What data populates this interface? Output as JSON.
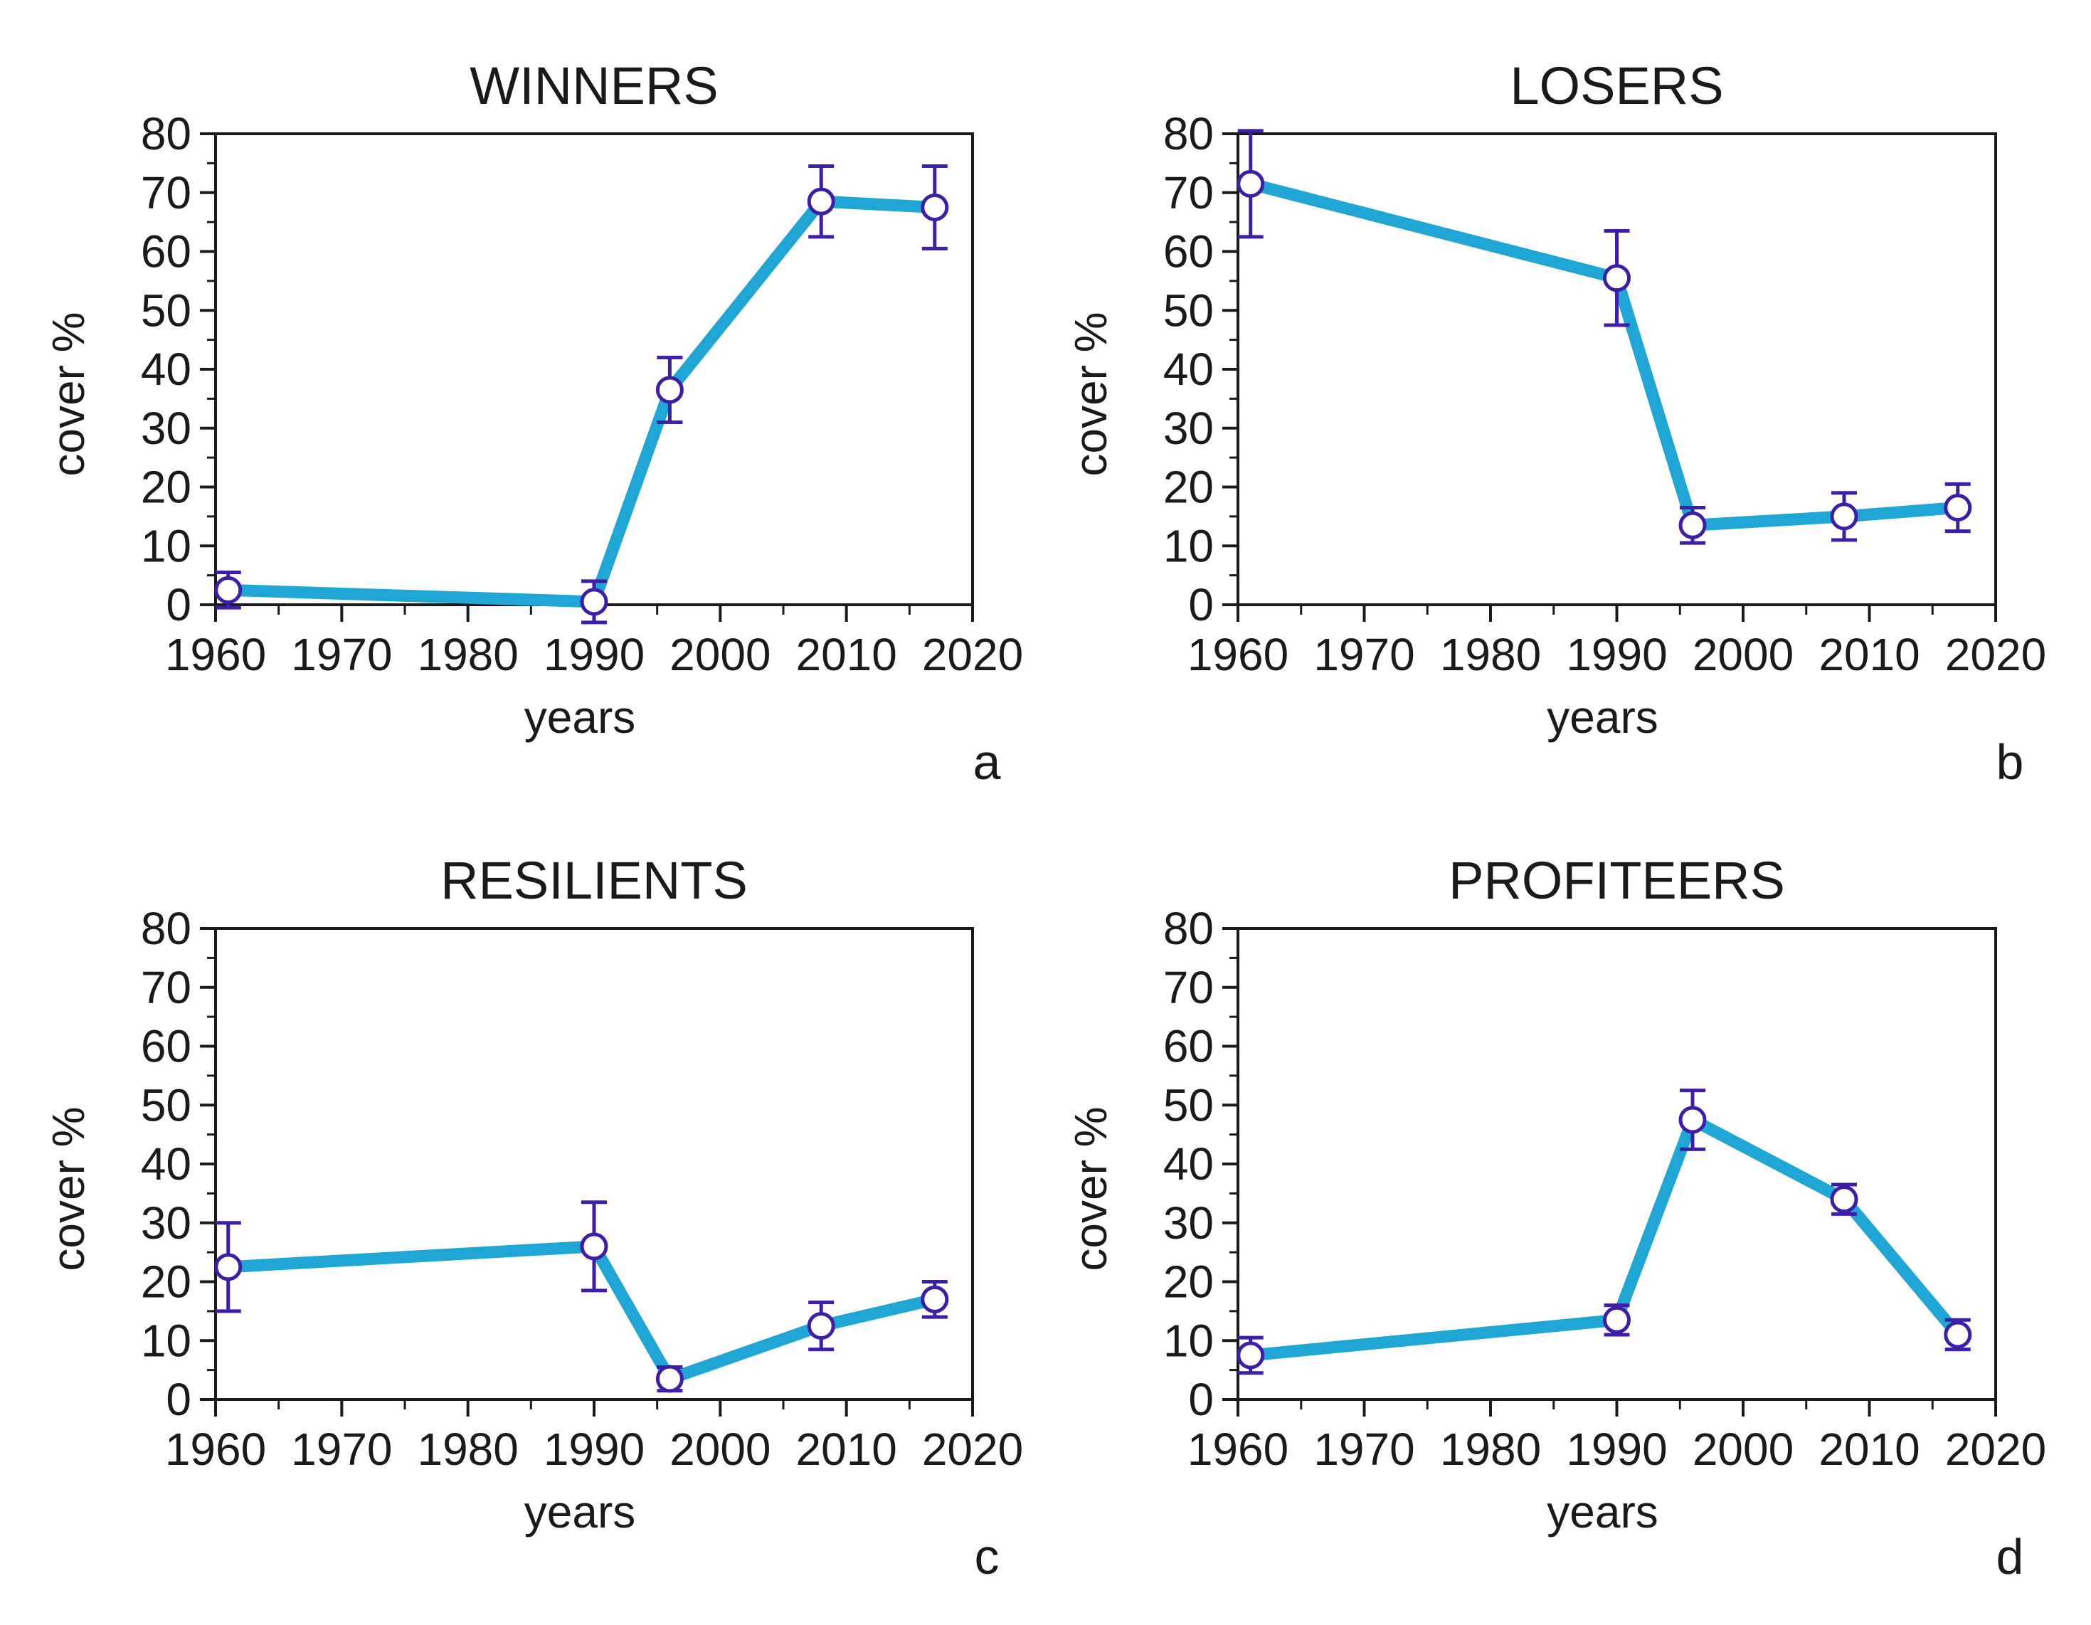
{
  "colors": {
    "line": "#1fa6d4",
    "marker": "#3d1ea8",
    "axis": "#1a1a1a"
  },
  "chart_data": [
    {
      "type": "line",
      "panel": "a",
      "title": "WINNERS",
      "xlabel": "years",
      "ylabel": "cover %",
      "xlim": [
        1960,
        2020
      ],
      "ylim": [
        0,
        80
      ],
      "xticks": [
        1960,
        1970,
        1980,
        1990,
        2000,
        2010,
        2020
      ],
      "yticks": [
        0,
        10,
        20,
        30,
        40,
        50,
        60,
        70,
        80
      ],
      "x": [
        1961,
        1990,
        1996,
        2008,
        2017
      ],
      "y": [
        2.5,
        0.5,
        36.5,
        68.5,
        67.5
      ],
      "err": [
        3,
        3.5,
        5.5,
        6,
        7
      ]
    },
    {
      "type": "line",
      "panel": "b",
      "title": "LOSERS",
      "xlabel": "years",
      "ylabel": "cover %",
      "xlim": [
        1960,
        2020
      ],
      "ylim": [
        0,
        80
      ],
      "xticks": [
        1960,
        1970,
        1980,
        1990,
        2000,
        2010,
        2020
      ],
      "yticks": [
        0,
        10,
        20,
        30,
        40,
        50,
        60,
        70,
        80
      ],
      "x": [
        1961,
        1990,
        1996,
        2008,
        2017
      ],
      "y": [
        71.5,
        55.5,
        13.5,
        15,
        16.5
      ],
      "err": [
        9,
        8,
        3,
        4,
        4
      ]
    },
    {
      "type": "line",
      "panel": "c",
      "title": "RESILIENTS",
      "xlabel": "years",
      "ylabel": "cover %",
      "xlim": [
        1960,
        2020
      ],
      "ylim": [
        0,
        80
      ],
      "xticks": [
        1960,
        1970,
        1980,
        1990,
        2000,
        2010,
        2020
      ],
      "yticks": [
        0,
        10,
        20,
        30,
        40,
        50,
        60,
        70,
        80
      ],
      "x": [
        1961,
        1990,
        1996,
        2008,
        2017
      ],
      "y": [
        22.5,
        26,
        3.5,
        12.5,
        17
      ],
      "err": [
        7.5,
        7.5,
        2,
        4,
        3
      ]
    },
    {
      "type": "line",
      "panel": "d",
      "title": "PROFITEERS",
      "xlabel": "years",
      "ylabel": "cover %",
      "xlim": [
        1960,
        2020
      ],
      "ylim": [
        0,
        80
      ],
      "xticks": [
        1960,
        1970,
        1980,
        1990,
        2000,
        2010,
        2020
      ],
      "yticks": [
        0,
        10,
        20,
        30,
        40,
        50,
        60,
        70,
        80
      ],
      "x": [
        1961,
        1990,
        1996,
        2008,
        2017
      ],
      "y": [
        7.5,
        13.5,
        47.5,
        34,
        11
      ],
      "err": [
        3,
        2.5,
        5,
        2.5,
        2.5
      ]
    }
  ]
}
